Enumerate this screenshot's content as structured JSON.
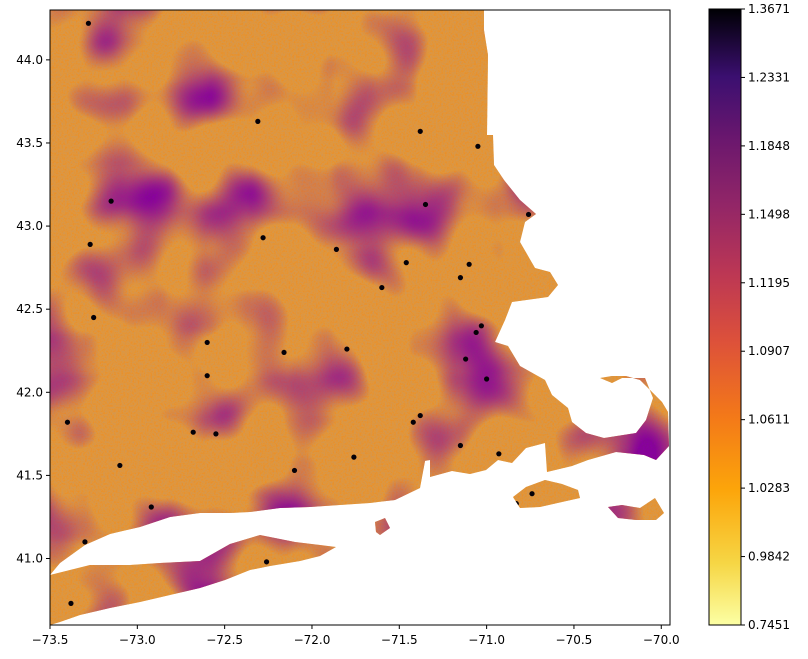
{
  "chart_data": {
    "type": "heatmap",
    "subtype": "geographic scatter map",
    "title": "",
    "xlabel": "",
    "ylabel": "",
    "xlim": [
      -73.5,
      -69.95
    ],
    "ylim": [
      40.6,
      44.3
    ],
    "x_ticks": [
      "-73.5",
      "-73.0",
      "-72.5",
      "-72.0",
      "-71.5",
      "-71.0",
      "-70.5",
      "-70.0"
    ],
    "y_ticks": [
      "41.0",
      "41.5",
      "42.0",
      "42.5",
      "43.0",
      "43.5",
      "44.0"
    ],
    "colormap": "inferno_r",
    "colorbar": {
      "ticks": [
        "0.7451",
        "0.9842",
        "1.0283",
        "1.0611",
        "1.0907",
        "1.1195",
        "1.1498",
        "1.1848",
        "1.2331",
        "1.3671"
      ],
      "min": 0.7451,
      "max": 1.3671
    },
    "points_city": [
      [
        -73.28,
        44.22
      ],
      [
        -72.31,
        43.63
      ],
      [
        -71.38,
        43.57
      ],
      [
        -71.05,
        43.48
      ],
      [
        -73.15,
        43.15
      ],
      [
        -71.35,
        43.13
      ],
      [
        -70.76,
        43.07
      ],
      [
        -73.27,
        42.89
      ],
      [
        -72.28,
        42.93
      ],
      [
        -71.86,
        42.86
      ],
      [
        -71.46,
        42.78
      ],
      [
        -71.1,
        42.77
      ],
      [
        -71.6,
        42.63
      ],
      [
        -71.15,
        42.69
      ],
      [
        -71.03,
        42.4
      ],
      [
        -71.06,
        42.36
      ],
      [
        -72.6,
        42.3
      ],
      [
        -73.25,
        42.45
      ],
      [
        -71.8,
        42.26
      ],
      [
        -72.16,
        42.24
      ],
      [
        -71.12,
        42.2
      ],
      [
        -72.6,
        42.1
      ],
      [
        -71.0,
        42.08
      ],
      [
        -73.4,
        41.82
      ],
      [
        -72.68,
        41.76
      ],
      [
        -72.55,
        41.75
      ],
      [
        -71.42,
        41.82
      ],
      [
        -71.38,
        41.86
      ],
      [
        -71.76,
        41.61
      ],
      [
        -71.15,
        41.68
      ],
      [
        -70.93,
        41.63
      ],
      [
        -73.1,
        41.56
      ],
      [
        -72.1,
        41.53
      ],
      [
        -72.92,
        41.31
      ],
      [
        -73.3,
        41.1
      ],
      [
        -71.2,
        41.49
      ],
      [
        -70.98,
        41.5
      ],
      [
        -70.83,
        41.33
      ],
      [
        -70.74,
        41.39
      ],
      [
        -73.38,
        40.73
      ],
      [
        -72.26,
        40.98
      ]
    ]
  }
}
